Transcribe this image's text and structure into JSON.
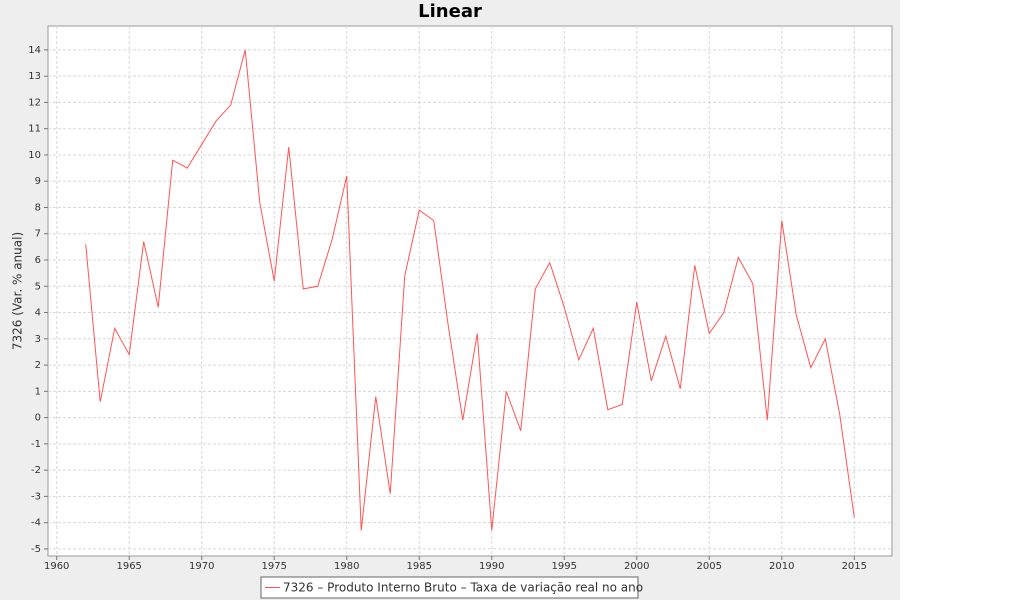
{
  "chart_data": {
    "type": "line",
    "title": "Linear",
    "y_label": "7326 (Var. % anual)",
    "x": [
      1962,
      1963,
      1964,
      1965,
      1966,
      1967,
      1968,
      1969,
      1970,
      1971,
      1972,
      1973,
      1974,
      1975,
      1976,
      1977,
      1978,
      1979,
      1980,
      1981,
      1982,
      1983,
      1984,
      1985,
      1986,
      1987,
      1988,
      1989,
      1990,
      1991,
      1992,
      1993,
      1994,
      1995,
      1996,
      1997,
      1998,
      1999,
      2000,
      2001,
      2002,
      2003,
      2004,
      2005,
      2006,
      2007,
      2008,
      2009,
      2010,
      2011,
      2012,
      2013,
      2014,
      2015
    ],
    "series": [
      {
        "name": "7326 – Produto Interno Bruto – Taxa de variação real no ano",
        "color": "#ff5555",
        "values": [
          6.6,
          0.6,
          3.4,
          2.4,
          6.7,
          4.2,
          9.8,
          9.5,
          10.4,
          11.3,
          11.9,
          14.0,
          8.2,
          5.2,
          10.3,
          4.9,
          5.0,
          6.8,
          9.2,
          -4.3,
          0.8,
          -2.9,
          5.4,
          7.9,
          7.5,
          3.5,
          -0.1,
          3.2,
          -4.3,
          1.0,
          -0.5,
          4.9,
          5.9,
          4.2,
          2.2,
          3.4,
          0.3,
          0.5,
          4.4,
          1.4,
          3.1,
          1.1,
          5.8,
          3.2,
          4.0,
          6.1,
          5.1,
          -0.1,
          7.5,
          3.9,
          1.9,
          3.0,
          0.1,
          -3.8
        ]
      }
    ],
    "xlim": [
      1959.4,
      2017.6
    ],
    "xticks": [
      1960,
      1965,
      1970,
      1975,
      1980,
      1985,
      1990,
      1995,
      2000,
      2005,
      2010,
      2015
    ],
    "ylim": [
      -5.27,
      14.91
    ],
    "yticks": [
      -5,
      -4,
      -3,
      -2,
      -1,
      0,
      1,
      2,
      3,
      4,
      5,
      6,
      7,
      8,
      9,
      10,
      11,
      12,
      13,
      14
    ],
    "grid": true
  }
}
